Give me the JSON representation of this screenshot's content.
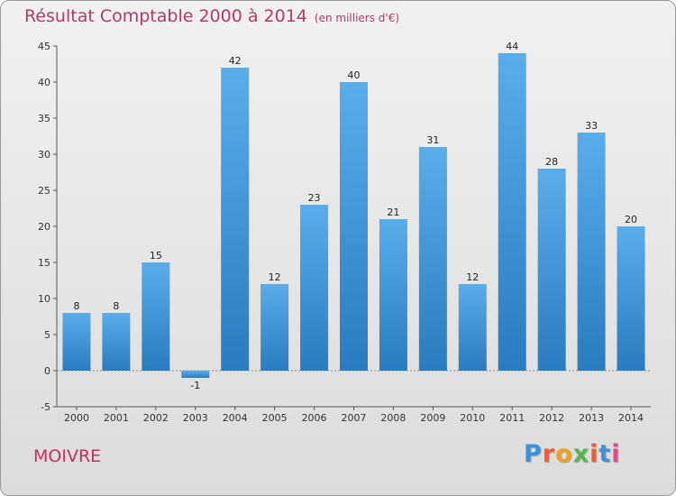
{
  "chart_data": {
    "type": "bar",
    "title": "Résultat Comptable 2000 à 2014",
    "subtitle": "(en milliers d'€)",
    "categories": [
      "2000",
      "2001",
      "2002",
      "2003",
      "2004",
      "2005",
      "2006",
      "2007",
      "2008",
      "2009",
      "2010",
      "2011",
      "2012",
      "2013",
      "2014"
    ],
    "values": [
      8,
      8,
      15,
      -1,
      42,
      12,
      23,
      40,
      21,
      31,
      12,
      44,
      28,
      33,
      20
    ],
    "ylim": [
      -5,
      45
    ],
    "yticks": [
      -5,
      0,
      5,
      10,
      15,
      20,
      25,
      30,
      35,
      40,
      45
    ],
    "xlabel": "",
    "ylabel": "",
    "grid": false
  },
  "footer": {
    "commune": "MOIVRE",
    "brand": "Proxiti"
  },
  "colors": {
    "bar_light": "#5aacea",
    "bar_dark": "#2a7cc0",
    "title": "#b23a66",
    "brand_letters": [
      "#3d8fd6",
      "#e8603a",
      "#f0a020",
      "#53b94a",
      "#e8603a",
      "#3d8fd6",
      "#e04a8a"
    ]
  }
}
